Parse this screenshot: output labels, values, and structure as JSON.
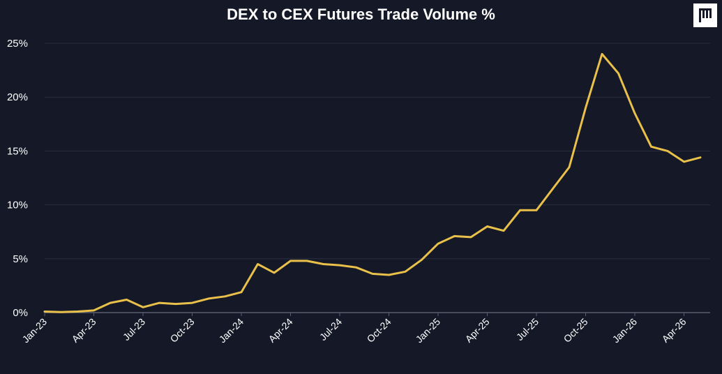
{
  "chart_data": {
    "type": "line",
    "title": "DEX to CEX Futures Trade Volume %",
    "xlabel": "",
    "ylabel": "",
    "ylim": [
      0,
      25
    ],
    "grid": true,
    "legend": "none",
    "line_color": "#E9C14A",
    "background": "#151827",
    "y_ticks": [
      "0%",
      "5%",
      "10%",
      "15%",
      "20%",
      "25%"
    ],
    "x_tick_labels": [
      "Jan-23",
      "Apr-23",
      "Jul-23",
      "Oct-23",
      "Jan-24",
      "Apr-24",
      "Jul-24",
      "Oct-24",
      "Jan-25",
      "Apr-25",
      "Jul-25",
      "Oct-25",
      "Jan-26",
      "Apr-26"
    ],
    "x": [
      "Jan-23",
      "Feb-23",
      "Mar-23",
      "Apr-23",
      "May-23",
      "Jun-23",
      "Jul-23",
      "Aug-23",
      "Sep-23",
      "Oct-23",
      "Nov-23",
      "Dec-23",
      "Jan-24",
      "Feb-24",
      "Mar-24",
      "Apr-24",
      "May-24",
      "Jun-24",
      "Jul-24",
      "Aug-24",
      "Sep-24",
      "Oct-24",
      "Nov-24",
      "Dec-24",
      "Jan-25",
      "Feb-25",
      "Mar-25",
      "Apr-25",
      "May-25",
      "Jun-25",
      "Jul-25",
      "Aug-25",
      "Sep-25",
      "Oct-25",
      "Nov-25",
      "Dec-25",
      "Jan-26",
      "Feb-26",
      "Mar-26",
      "Apr-26",
      "May-26"
    ],
    "series": [
      {
        "values": [
          0.1,
          0.05,
          0.1,
          0.2,
          0.9,
          1.2,
          0.5,
          0.9,
          0.8,
          0.9,
          1.3,
          1.5,
          1.9,
          4.5,
          3.7,
          4.8,
          4.8,
          4.5,
          4.4,
          4.2,
          3.6,
          3.5,
          3.8,
          4.9,
          6.4,
          7.1,
          7.0,
          8.0,
          7.6,
          9.5,
          9.5,
          11.5,
          13.5,
          19.0,
          24.0,
          22.2,
          18.5,
          15.4,
          15.0,
          14.0,
          14.4
        ]
      }
    ]
  }
}
